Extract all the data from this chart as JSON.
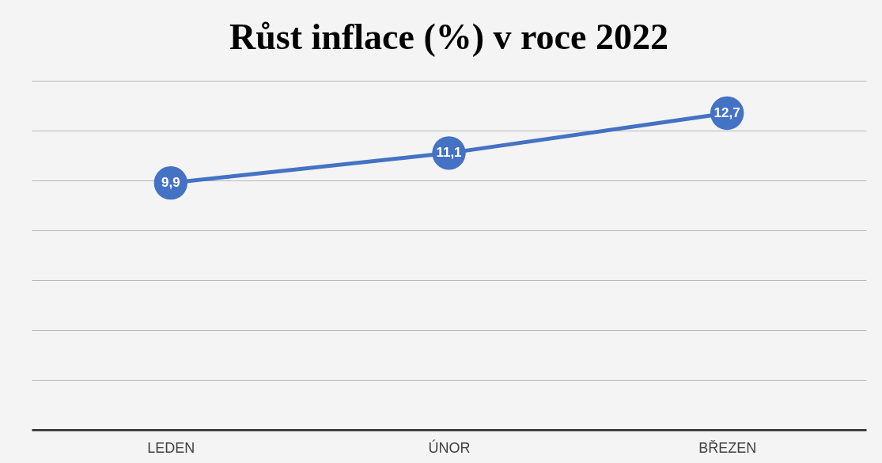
{
  "chart_data": {
    "type": "line",
    "title": "Růst inflace (%) v roce 2022",
    "categories": [
      "LEDEN",
      "ÚNOR",
      "BŘEZEN"
    ],
    "series": [
      {
        "color": "#4472c4",
        "values": [
          9.9,
          11.1,
          12.7
        ],
        "value_labels": [
          "9,9",
          "11,1",
          "12,7"
        ]
      }
    ],
    "ylim": [
      0,
      14
    ],
    "yticks": [
      {
        "value": 0,
        "label": null
      },
      {
        "value": 2,
        "label": null
      },
      {
        "value": 4,
        "label": null
      },
      {
        "value": 6,
        "label": null
      },
      {
        "value": 8,
        "label": null
      },
      {
        "value": 10,
        "label": null
      },
      {
        "value": 12,
        "label": null
      },
      {
        "value": 14,
        "label": null
      }
    ],
    "tick_labels": "x",
    "grid": "y",
    "marker": "circle",
    "line_style": "solid"
  }
}
